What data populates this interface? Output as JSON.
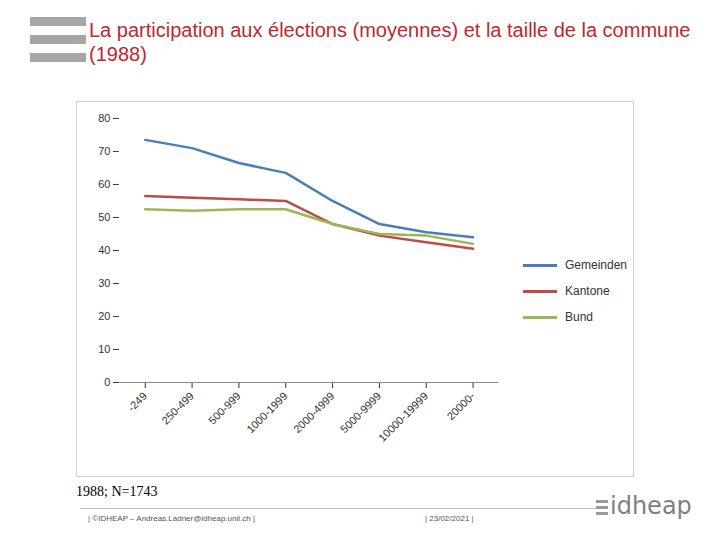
{
  "chart_data": {
    "type": "line",
    "title": "La participation aux élections (moyennes) et la taille de la commune (1988)",
    "categories": [
      "-249",
      "250-499",
      "500-999",
      "1000-1999",
      "2000-4999",
      "5000-9999",
      "10000-19999",
      "20000-"
    ],
    "series": [
      {
        "name": "Gemeinden",
        "color": "#4a7ebb",
        "values": [
          73.5,
          71,
          66.5,
          63.5,
          55,
          48,
          45.5,
          44
        ]
      },
      {
        "name": "Kantone",
        "color": "#be4b48",
        "values": [
          56.5,
          56,
          55.5,
          55,
          48,
          44.5,
          42.5,
          40.5
        ]
      },
      {
        "name": "Bund",
        "color": "#98b954",
        "values": [
          52.5,
          52,
          52.5,
          52.5,
          48,
          45,
          44.5,
          42
        ]
      }
    ],
    "ylim": [
      0,
      80
    ],
    "yticks": [
      0,
      10,
      20,
      30,
      40,
      50,
      60,
      70,
      80
    ],
    "grid": false,
    "legend": "right",
    "caption": "1988; N=1743"
  },
  "footer": {
    "left": "| ©IDHEAP – Andreas.Ladner@idheap.unil.ch |",
    "date": "| 23/02/2021 |",
    "logo": "idheap"
  }
}
